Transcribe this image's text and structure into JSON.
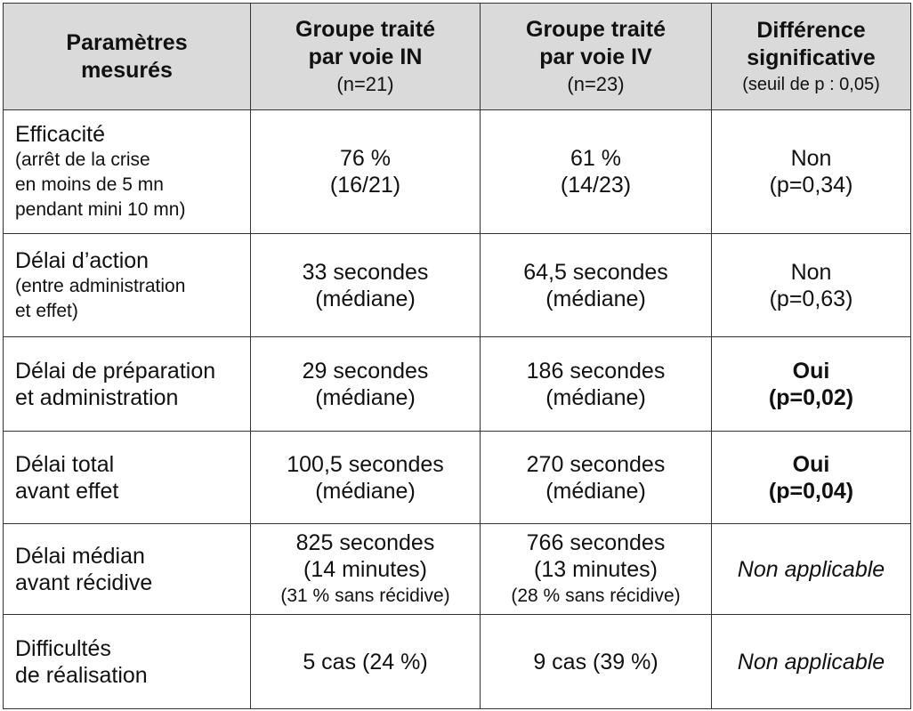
{
  "headers": {
    "param": [
      "Paramètres",
      "mesurés"
    ],
    "in": {
      "title": [
        "Groupe traité",
        "par voie IN"
      ],
      "n": "(n=21)"
    },
    "iv": {
      "title": [
        "Groupe traité",
        "par voie IV"
      ],
      "n": "(n=23)"
    },
    "diff": {
      "title": [
        "Différence",
        "significative"
      ],
      "note": "(seuil de p : 0,05)"
    }
  },
  "rows": [
    {
      "param_main": [
        "Efficacité"
      ],
      "param_sub": [
        "(arrêt de la crise",
        "en moins de 5 mn",
        "pendant mini 10 mn)"
      ],
      "in": [
        "76 %",
        "(16/21)"
      ],
      "in_small": "",
      "iv": [
        "61 %",
        "(14/23)"
      ],
      "iv_small": "",
      "diff": [
        "Non",
        "(p=0,34)"
      ],
      "diff_style": "normal"
    },
    {
      "param_main": [
        "Délai d’action"
      ],
      "param_sub": [
        "(entre administration",
        "et effet)"
      ],
      "in": [
        "33 secondes",
        "(médiane)"
      ],
      "in_small": "",
      "iv": [
        "64,5 secondes",
        "(médiane)"
      ],
      "iv_small": "",
      "diff": [
        "Non",
        "(p=0,63)"
      ],
      "diff_style": "normal"
    },
    {
      "param_main": [
        "Délai de préparation",
        "et administration"
      ],
      "param_sub": [],
      "in": [
        "29 secondes",
        "(médiane)"
      ],
      "in_small": "",
      "iv": [
        "186 secondes",
        "(médiane)"
      ],
      "iv_small": "",
      "diff": [
        "Oui",
        "(p=0,02)"
      ],
      "diff_style": "bold"
    },
    {
      "param_main": [
        "Délai total",
        "avant effet"
      ],
      "param_sub": [],
      "in": [
        "100,5 secondes",
        "(médiane)"
      ],
      "in_small": "",
      "iv": [
        "270 secondes",
        "(médiane)"
      ],
      "iv_small": "",
      "diff": [
        "Oui",
        "(p=0,04)"
      ],
      "diff_style": "bold"
    },
    {
      "param_main": [
        "Délai médian",
        "avant récidive"
      ],
      "param_sub": [],
      "in": [
        "825 secondes",
        "(14 minutes)"
      ],
      "in_small": "(31 % sans récidive)",
      "iv": [
        "766 secondes",
        "(13 minutes)"
      ],
      "iv_small": "(28 % sans récidive)",
      "diff": [
        "Non applicable"
      ],
      "diff_style": "italic"
    },
    {
      "param_main": [
        "Difficultés",
        "de réalisation"
      ],
      "param_sub": [],
      "in": [
        "5 cas (24 %)"
      ],
      "in_small": "",
      "iv": [
        "9 cas (39 %)"
      ],
      "iv_small": "",
      "diff": [
        "Non applicable"
      ],
      "diff_style": "italic"
    }
  ]
}
